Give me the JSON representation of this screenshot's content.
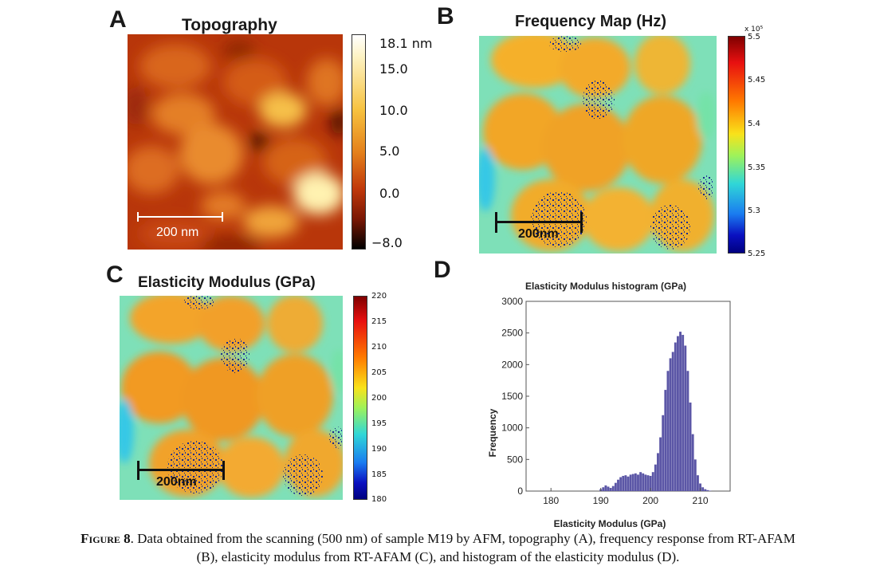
{
  "figure": {
    "number_label": "Figure 8",
    "caption_rest_line1": ". Data obtained from the scanning (500 nm) of sample M19 by AFM, topography (A), frequency response from RT-AFAM",
    "caption_line2": "(B), elasticity modulus from RT-AFAM (C), and histogram of the elasticity modulus (D)."
  },
  "panels": {
    "a": {
      "letter": "A",
      "title": "Topography",
      "colorbar_ticks": [
        "18.1 nm",
        "15.0",
        "10.0",
        "5.0",
        "0.0",
        "−8.0"
      ],
      "scale_bar_label": "200 nm",
      "colormap": "afmhot"
    },
    "b": {
      "letter": "B",
      "title": "Frequency Map (Hz)",
      "colorbar_exponent": "x 10⁵",
      "colorbar_ticks": [
        "5.5",
        "5.45",
        "5.4",
        "5.35",
        "5.3",
        "5.25"
      ],
      "scale_bar_label": "200nm",
      "colormap": "jet"
    },
    "c": {
      "letter": "C",
      "title": "Elasticity Modulus (GPa)",
      "colorbar_ticks": [
        "220",
        "215",
        "210",
        "205",
        "200",
        "195",
        "190",
        "185",
        "180"
      ],
      "scale_bar_label": "200nm",
      "colormap": "jet"
    },
    "d": {
      "letter": "D"
    }
  },
  "chart_data": {
    "type": "bar",
    "title": "Elasticity Modulus histogram (GPa)",
    "xlabel": "Elasticity Modulus (GPa)",
    "ylabel": "Frequency",
    "xlim": [
      175,
      216
    ],
    "ylim": [
      0,
      3000
    ],
    "xticks": [
      180,
      190,
      200,
      210
    ],
    "yticks": [
      0,
      500,
      1000,
      1500,
      2000,
      2500,
      3000
    ],
    "bar_color": "#5b56a6",
    "x": [
      190.0,
      190.5,
      191.0,
      191.5,
      192.0,
      192.5,
      193.0,
      193.5,
      194.0,
      194.5,
      195.0,
      195.5,
      196.0,
      196.5,
      197.0,
      197.5,
      198.0,
      198.5,
      199.0,
      199.5,
      200.0,
      200.5,
      201.0,
      201.5,
      202.0,
      202.5,
      203.0,
      203.5,
      204.0,
      204.5,
      205.0,
      205.5,
      206.0,
      206.5,
      207.0,
      207.5,
      208.0,
      208.5,
      209.0,
      209.5,
      210.0,
      210.5,
      211.0,
      211.5,
      212.0
    ],
    "values": [
      30,
      60,
      90,
      70,
      50,
      80,
      130,
      180,
      220,
      240,
      250,
      230,
      260,
      270,
      280,
      260,
      300,
      280,
      260,
      250,
      240,
      300,
      420,
      600,
      850,
      1200,
      1600,
      1900,
      2100,
      2200,
      2350,
      2450,
      2520,
      2470,
      2300,
      1900,
      1400,
      900,
      500,
      250,
      120,
      60,
      30,
      15,
      5
    ]
  }
}
